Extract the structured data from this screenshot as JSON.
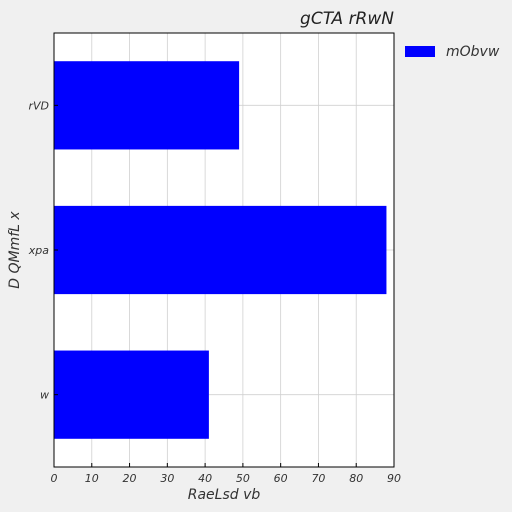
{
  "chart_data": {
    "type": "bar",
    "orientation": "horizontal",
    "title": "gCTA  rRwN",
    "xlabel": "RaeLsd vb",
    "ylabel": "D QMmfL x",
    "categories": [
      "rVD",
      "xpa",
      "w"
    ],
    "series": [
      {
        "name": "mObvw",
        "values": [
          49,
          88,
          41
        ],
        "color": "#0000ff"
      }
    ],
    "xlim": [
      0,
      90
    ],
    "xticks": [
      0,
      10,
      20,
      30,
      40,
      50,
      60,
      70,
      80,
      90
    ],
    "xtick_labels": [
      "0",
      "10",
      "20",
      "30",
      "40",
      "50",
      "60",
      "70",
      "80",
      "90"
    ],
    "grid": true,
    "legend_position": "outside top-right",
    "colors": {
      "background": "#f0f0f0",
      "plot_background": "#ffffff",
      "grid": "#d0d0d0",
      "axis": "#000000"
    }
  }
}
